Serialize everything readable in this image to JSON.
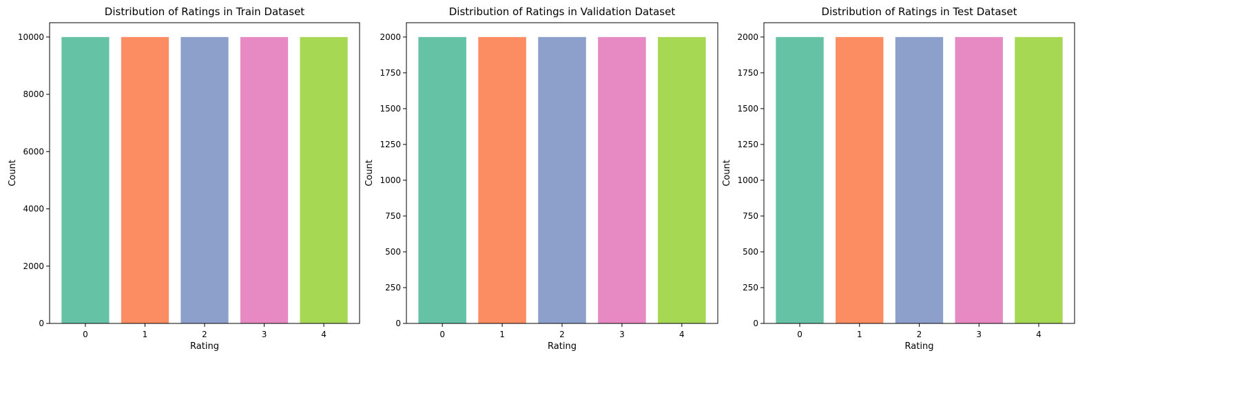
{
  "chart_data": [
    {
      "type": "bar",
      "title": "Distribution of Ratings in Train Dataset",
      "xlabel": "Rating",
      "ylabel": "Count",
      "categories": [
        "0",
        "1",
        "2",
        "3",
        "4"
      ],
      "values": [
        10000,
        10000,
        10000,
        10000,
        10000
      ],
      "ylim": [
        0,
        10500
      ],
      "yticks": [
        0,
        2000,
        4000,
        6000,
        8000,
        10000
      ],
      "colors": [
        "#66c2a5",
        "#fc8d62",
        "#8da0cb",
        "#e78ac3",
        "#a6d854"
      ],
      "grid": false
    },
    {
      "type": "bar",
      "title": "Distribution of Ratings in Validation Dataset",
      "xlabel": "Rating",
      "ylabel": "Count",
      "categories": [
        "0",
        "1",
        "2",
        "3",
        "4"
      ],
      "values": [
        2000,
        2000,
        2000,
        2000,
        2000
      ],
      "ylim": [
        0,
        2100
      ],
      "yticks": [
        0,
        250,
        500,
        750,
        1000,
        1250,
        1500,
        1750,
        2000
      ],
      "colors": [
        "#66c2a5",
        "#fc8d62",
        "#8da0cb",
        "#e78ac3",
        "#a6d854"
      ],
      "grid": false
    },
    {
      "type": "bar",
      "title": "Distribution of Ratings in Test Dataset",
      "xlabel": "Rating",
      "ylabel": "Count",
      "categories": [
        "0",
        "1",
        "2",
        "3",
        "4"
      ],
      "values": [
        2000,
        2000,
        2000,
        2000,
        2000
      ],
      "ylim": [
        0,
        2100
      ],
      "yticks": [
        0,
        250,
        500,
        750,
        1000,
        1250,
        1500,
        1750,
        2000
      ],
      "colors": [
        "#66c2a5",
        "#fc8d62",
        "#8da0cb",
        "#e78ac3",
        "#a6d854"
      ],
      "grid": false
    }
  ]
}
